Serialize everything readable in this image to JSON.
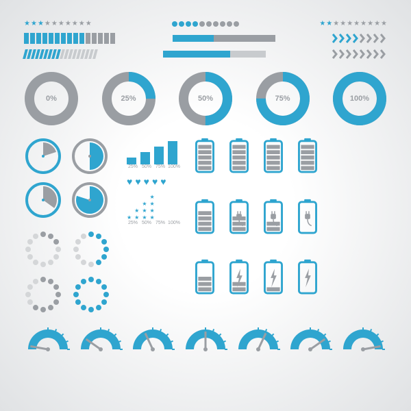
{
  "colors": {
    "primary": "#2fa5cf",
    "muted": "#9a9ea3",
    "bg": "#ffffff"
  },
  "top_row": {
    "stars": {
      "total": 10,
      "filled": 3,
      "filled_color": "#2fa5cf",
      "empty_color": "#9a9ea3"
    },
    "dots": {
      "total": 10,
      "filled": 4,
      "filled_color": "#2fa5cf",
      "empty_color": "#9a9ea3"
    },
    "stars2": {
      "total": 10,
      "filled": 2,
      "filled_color": "#2fa5cf",
      "empty_color": "#9a9ea3"
    }
  },
  "row2": {
    "segbar": {
      "total": 15,
      "filled": 10,
      "filled_color": "#2fa5cf",
      "empty_color": "#9a9ea3"
    },
    "solid": {
      "percent": 40,
      "fill_color": "#2fa5cf",
      "track_color": "#9a9ea3"
    },
    "chevrons": {
      "total": 8,
      "filled": 4,
      "filled_color": "#2fa5cf",
      "empty_color": "#9a9ea3"
    }
  },
  "row3": {
    "stripe": {
      "total": 18,
      "filled": 9,
      "filled_color": "#2fa5cf",
      "empty_color": "#c8cbce"
    },
    "solid2": {
      "percent": 65,
      "fill_color": "#2fa5cf",
      "track_color": "#c8cbce"
    },
    "chevrons2": {
      "total": 8,
      "filled": 8,
      "filled_color": "#9a9ea3",
      "empty_color": "#9a9ea3"
    }
  },
  "rings": [
    {
      "percent": 0,
      "label": "0%"
    },
    {
      "percent": 25,
      "label": "25%"
    },
    {
      "percent": 50,
      "label": "50%"
    },
    {
      "percent": 75,
      "label": "75%"
    },
    {
      "percent": 100,
      "label": "100%"
    }
  ],
  "ring_style": {
    "track_color": "#9a9ea3",
    "fill_color": "#2fa5cf",
    "text_color": "#9a9ea3",
    "stroke_width": 14
  },
  "clocks": [
    {
      "percent": 20,
      "fill_color": "#9a9ea3",
      "ring_color": "#2fa5cf"
    },
    {
      "percent": 50,
      "fill_color": "#2fa5cf",
      "ring_color": "#9a9ea3"
    },
    {
      "percent": 35,
      "fill_color": "#9a9ea3",
      "ring_color": "#2fa5cf"
    },
    {
      "percent": 80,
      "fill_color": "#2fa5cf",
      "ring_color": "#9a9ea3"
    }
  ],
  "signal": {
    "labels": [
      "25%",
      "50%",
      "75%",
      "100%"
    ],
    "heights": [
      10,
      18,
      26,
      34
    ],
    "color": "#2fa5cf",
    "label_color": "#9a9ea3"
  },
  "hearts": {
    "count": 5,
    "color": "#2fa5cf"
  },
  "star_pyramid": {
    "labels": [
      "25%",
      "50%",
      "75%",
      "100%"
    ],
    "counts": [
      1,
      2,
      3,
      4
    ],
    "color": "#2fa5cf",
    "label_color": "#9a9ea3"
  },
  "batteries": {
    "outline_color": "#2fa5cf",
    "cell_color": "#9a9ea3",
    "grid": [
      {
        "cells": 5,
        "overlay": null
      },
      {
        "cells": 5,
        "overlay": null
      },
      {
        "cells": 5,
        "overlay": null
      },
      {
        "cells": 5,
        "overlay": null
      },
      {
        "cells": 4,
        "overlay": null
      },
      {
        "cells": 3,
        "overlay": "plug"
      },
      {
        "cells": 2,
        "overlay": "plug"
      },
      {
        "cells": 0,
        "overlay": "plug"
      },
      {
        "cells": 3,
        "overlay": null
      },
      {
        "cells": 2,
        "overlay": "bolt"
      },
      {
        "cells": 1,
        "overlay": "bolt"
      },
      {
        "cells": 0,
        "overlay": "bolt"
      }
    ]
  },
  "dotted_circles": [
    {
      "total": 12,
      "filled": 3,
      "filled_color": "#9a9ea3",
      "empty_color": "#d4d6d8"
    },
    {
      "total": 12,
      "filled": 6,
      "filled_color": "#2fa5cf",
      "empty_color": "#d4d6d8"
    },
    {
      "total": 12,
      "filled": 8,
      "filled_color": "#9a9ea3",
      "empty_color": "#d4d6d8"
    },
    {
      "total": 12,
      "filled": 12,
      "filled_color": "#2fa5cf",
      "empty_color": "#d4d6d8"
    }
  ],
  "gauges": {
    "count": 7,
    "fill_color": "#2fa5cf",
    "bg_color": "#ffffff",
    "needle_color": "#9a9ea3",
    "angles": [
      -80,
      -55,
      -25,
      0,
      25,
      55,
      80
    ]
  }
}
